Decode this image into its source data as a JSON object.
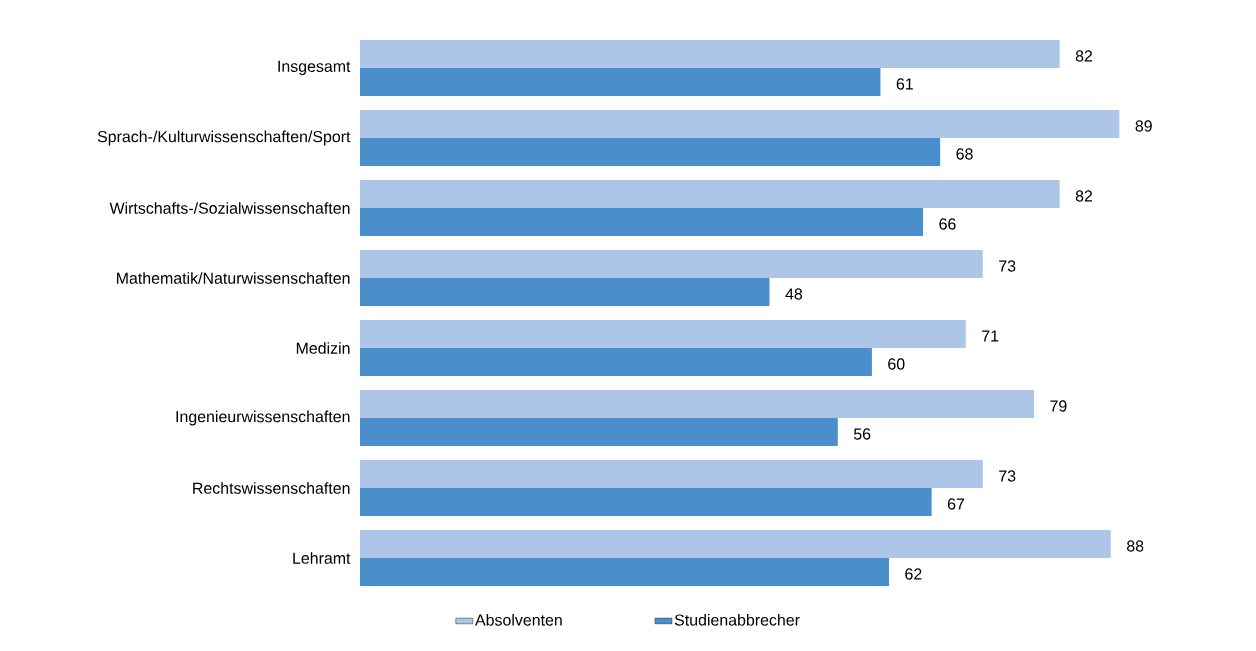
{
  "chart_data": {
    "type": "bar",
    "orientation": "horizontal",
    "categories": [
      "Insgesamt",
      "Sprach-/Kulturwissenschaften/Sport",
      "Wirtschafts-/Sozialwissenschaften",
      "Mathematik/Naturwissenschaften",
      "Medizin",
      "Ingenieurwissenschaften",
      "Rechtswissenschaften",
      "Lehramt"
    ],
    "series": [
      {
        "name": "Absolventen",
        "color": "#adc6e8",
        "values": [
          82,
          89,
          82,
          73,
          71,
          79,
          73,
          88
        ]
      },
      {
        "name": "Studienabbrecher",
        "color": "#4a8fcc",
        "values": [
          61,
          68,
          66,
          48,
          60,
          56,
          67,
          62
        ]
      }
    ],
    "data_labels": true,
    "legend": "bottom"
  }
}
